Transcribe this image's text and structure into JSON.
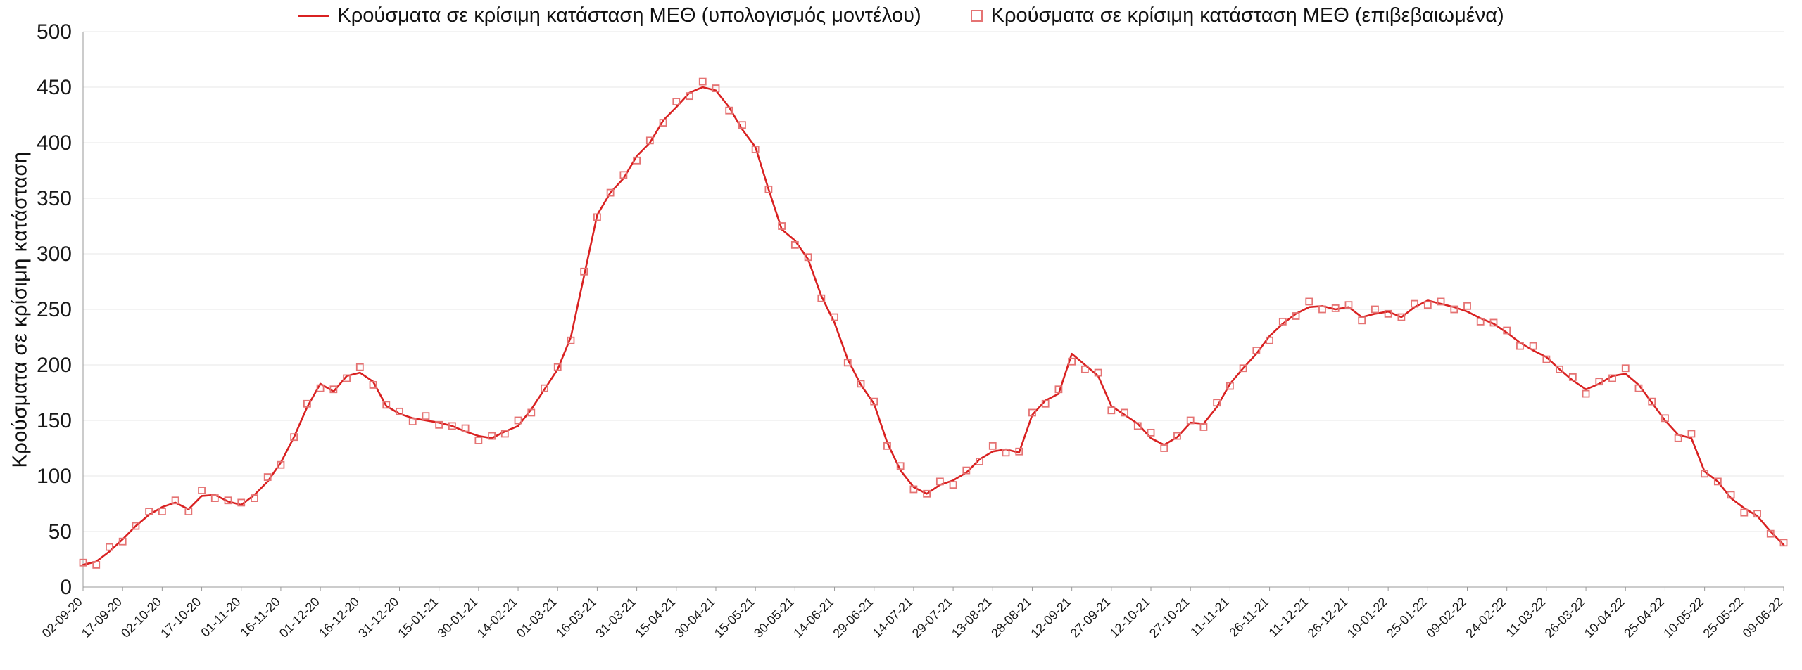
{
  "chart_data": {
    "type": "line",
    "title": "",
    "xlabel": "",
    "ylabel": "Κρούσματα σε κρίσιμη κατάσταση",
    "ylim": [
      0,
      500
    ],
    "ytick_step": 50,
    "grid": "horizontal",
    "legend_position": "top-center",
    "x_total_days": 645,
    "x_tick_interval_days": 15,
    "x_tick_labels": [
      "02-09-20",
      "17-09-20",
      "02-10-20",
      "17-10-20",
      "01-11-20",
      "16-11-20",
      "01-12-20",
      "16-12-20",
      "31-12-20",
      "15-01-21",
      "30-01-21",
      "14-02-21",
      "01-03-21",
      "16-03-21",
      "31-03-21",
      "15-04-21",
      "30-04-21",
      "15-05-21",
      "30-05-21",
      "14-06-21",
      "29-06-21",
      "14-07-21",
      "29-07-21",
      "13-08-21",
      "28-08-21",
      "12-09-21",
      "27-09-21",
      "12-10-21",
      "27-10-21",
      "11-11-21",
      "26-11-21",
      "11-12-21",
      "26-12-21",
      "10-01-22",
      "25-01-22",
      "09-02-22",
      "24-02-22",
      "11-03-22",
      "26-03-22",
      "10-04-22",
      "25-04-22",
      "10-05-22",
      "25-05-22",
      "09-06-22"
    ],
    "x_days": [
      0,
      5,
      10,
      15,
      20,
      25,
      30,
      35,
      40,
      45,
      50,
      55,
      60,
      65,
      70,
      75,
      80,
      85,
      90,
      95,
      100,
      105,
      110,
      115,
      120,
      125,
      130,
      135,
      140,
      145,
      150,
      155,
      160,
      165,
      170,
      175,
      180,
      185,
      190,
      195,
      200,
      205,
      210,
      215,
      220,
      225,
      230,
      235,
      240,
      245,
      250,
      255,
      260,
      265,
      270,
      275,
      280,
      285,
      290,
      295,
      300,
      305,
      310,
      315,
      320,
      325,
      330,
      335,
      340,
      345,
      350,
      355,
      360,
      365,
      370,
      375,
      380,
      385,
      390,
      395,
      400,
      405,
      410,
      415,
      420,
      425,
      430,
      435,
      440,
      445,
      450,
      455,
      460,
      465,
      470,
      475,
      480,
      485,
      490,
      495,
      500,
      505,
      510,
      515,
      520,
      525,
      530,
      535,
      540,
      545,
      550,
      555,
      560,
      565,
      570,
      575,
      580,
      585,
      590,
      595,
      600,
      605,
      610,
      615,
      620,
      625,
      630,
      635,
      640,
      645
    ],
    "series": [
      {
        "name": "Κρούσματα σε κρίσιμη κατάσταση ΜΕΘ (υπολογισμός μοντέλου)",
        "type": "line",
        "color": "#d92121",
        "values": [
          20,
          23,
          32,
          43,
          55,
          65,
          72,
          76,
          70,
          82,
          83,
          77,
          74,
          83,
          95,
          112,
          135,
          162,
          183,
          176,
          190,
          193,
          185,
          163,
          156,
          152,
          150,
          148,
          145,
          140,
          136,
          134,
          140,
          145,
          160,
          178,
          196,
          225,
          280,
          335,
          355,
          368,
          388,
          400,
          420,
          432,
          445,
          450,
          447,
          432,
          412,
          396,
          358,
          322,
          312,
          295,
          262,
          238,
          205,
          182,
          165,
          130,
          105,
          90,
          84,
          92,
          96,
          103,
          115,
          122,
          124,
          121,
          155,
          168,
          174,
          210,
          200,
          190,
          163,
          155,
          147,
          134,
          128,
          135,
          148,
          147,
          162,
          183,
          197,
          210,
          226,
          237,
          246,
          252,
          253,
          250,
          252,
          243,
          246,
          248,
          243,
          252,
          258,
          255,
          252,
          248,
          242,
          237,
          229,
          220,
          213,
          207,
          196,
          186,
          178,
          183,
          190,
          192,
          182,
          166,
          150,
          137,
          134,
          104,
          95,
          80,
          71,
          64,
          50,
          38
        ]
      },
      {
        "name": "Κρούσματα σε κρίσιμη κατάσταση ΜΕΘ (επιβεβαιωμένα)",
        "type": "scatter-open-square",
        "color": "#e57373",
        "values": [
          22,
          20,
          36,
          41,
          55,
          68,
          68,
          78,
          68,
          87,
          80,
          78,
          76,
          80,
          99,
          110,
          135,
          165,
          179,
          178,
          188,
          198,
          182,
          164,
          158,
          149,
          154,
          146,
          145,
          143,
          132,
          136,
          138,
          150,
          157,
          179,
          198,
          222,
          284,
          333,
          355,
          371,
          384,
          402,
          418,
          437,
          442,
          455,
          449,
          429,
          416,
          394,
          358,
          325,
          308,
          297,
          260,
          243,
          202,
          183,
          167,
          127,
          109,
          88,
          84,
          95,
          92,
          105,
          113,
          127,
          121,
          122,
          157,
          165,
          178,
          203,
          196,
          193,
          159,
          157,
          145,
          139,
          125,
          136,
          150,
          144,
          166,
          181,
          197,
          213,
          222,
          239,
          244,
          257,
          250,
          251,
          254,
          240,
          250,
          246,
          243,
          255,
          254,
          257,
          250,
          253,
          239,
          238,
          231,
          217,
          217,
          205,
          196,
          189,
          174,
          185,
          188,
          197,
          179,
          167,
          152,
          134,
          138,
          102,
          95,
          83,
          67,
          66,
          48,
          40
        ]
      }
    ],
    "colors": {
      "line": "#d92121",
      "marker": "#e57373",
      "grid": "#e7e7e7",
      "axis": "#9a9a9a",
      "text": "#1a1a1a"
    }
  }
}
